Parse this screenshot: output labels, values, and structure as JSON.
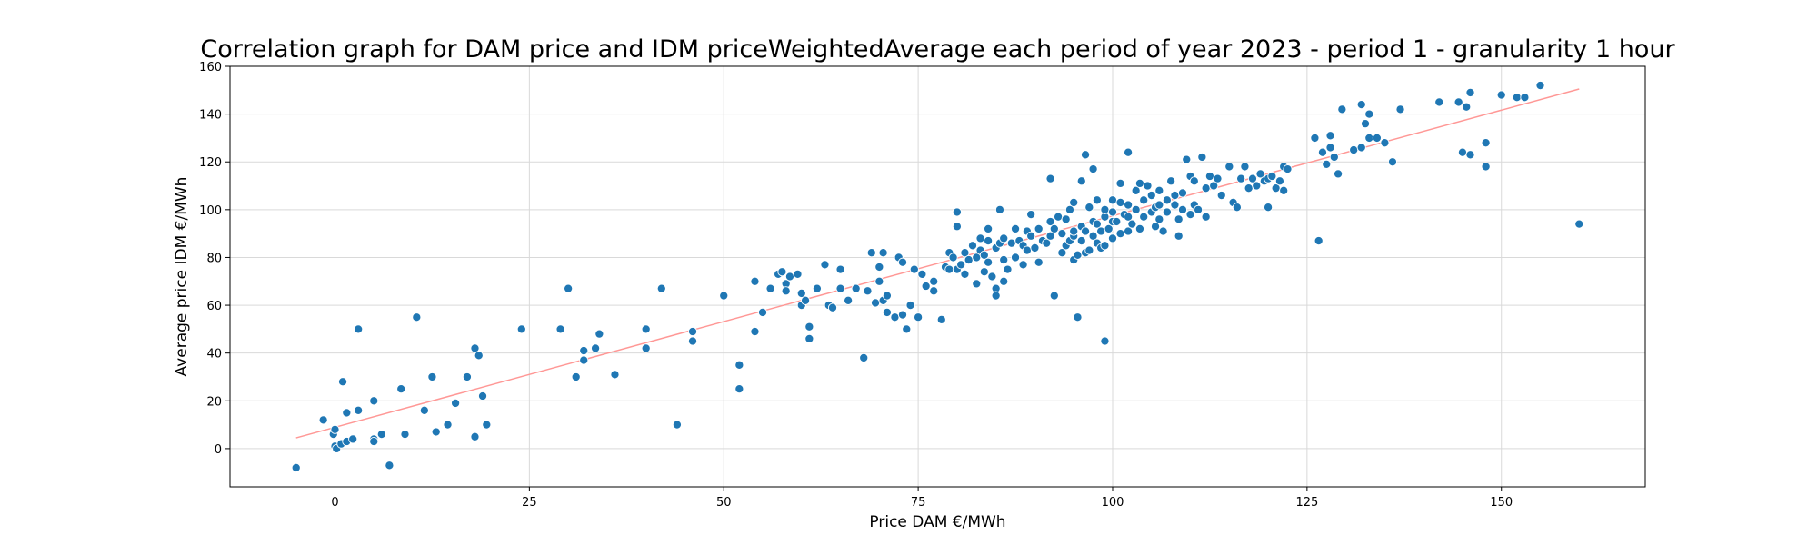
{
  "chart_data": {
    "type": "scatter",
    "title": "Correlation graph for DAM price and IDM priceWeightedAverage each period of year 2023 - period 1 - granularity 1 hour",
    "xlabel": "Price DAM €/MWh",
    "ylabel": "Average price IDM €/MWh",
    "xlim": [
      -13.5,
      168.5
    ],
    "ylim": [
      -16,
      160
    ],
    "xticks": [
      0,
      25,
      50,
      75,
      100,
      125,
      150
    ],
    "yticks": [
      0,
      20,
      40,
      60,
      80,
      100,
      120,
      140,
      160
    ],
    "grid": true,
    "point_color": "#1f77b4",
    "trend_color": "#ff9896",
    "trendline": {
      "x": [
        -5,
        160
      ],
      "y": [
        4.5,
        150.5
      ]
    },
    "points": [
      [
        -5,
        -8
      ],
      [
        -1.5,
        12
      ],
      [
        -0.2,
        6
      ],
      [
        0,
        8
      ],
      [
        0,
        1
      ],
      [
        0.2,
        0
      ],
      [
        0.8,
        2
      ],
      [
        1,
        28
      ],
      [
        1.5,
        15
      ],
      [
        1.5,
        3
      ],
      [
        2.3,
        4
      ],
      [
        3,
        16
      ],
      [
        3,
        50
      ],
      [
        5,
        20
      ],
      [
        5,
        4
      ],
      [
        5,
        3
      ],
      [
        6,
        6
      ],
      [
        7,
        -7
      ],
      [
        8.5,
        25
      ],
      [
        9,
        6
      ],
      [
        10.5,
        55
      ],
      [
        11.5,
        16
      ],
      [
        12.5,
        30
      ],
      [
        13,
        7
      ],
      [
        14.5,
        10
      ],
      [
        15.5,
        19
      ],
      [
        17,
        30
      ],
      [
        18,
        5
      ],
      [
        18,
        42
      ],
      [
        18.5,
        39
      ],
      [
        19,
        22
      ],
      [
        19.5,
        10
      ],
      [
        24,
        50
      ],
      [
        29,
        50
      ],
      [
        30,
        67
      ],
      [
        31,
        30
      ],
      [
        32,
        41
      ],
      [
        32,
        37
      ],
      [
        33.5,
        42
      ],
      [
        34,
        48
      ],
      [
        36,
        31
      ],
      [
        40,
        50
      ],
      [
        40,
        42
      ],
      [
        42,
        67
      ],
      [
        44,
        10
      ],
      [
        46,
        49
      ],
      [
        46,
        45
      ],
      [
        50,
        64
      ],
      [
        52,
        35
      ],
      [
        52,
        25
      ],
      [
        54,
        70
      ],
      [
        54,
        49
      ],
      [
        55,
        57
      ],
      [
        56,
        67
      ],
      [
        57,
        73
      ],
      [
        57.5,
        74
      ],
      [
        58,
        69
      ],
      [
        58,
        66
      ],
      [
        58.5,
        72
      ],
      [
        59.5,
        73
      ],
      [
        60,
        65
      ],
      [
        60,
        60
      ],
      [
        60.5,
        62
      ],
      [
        61,
        51
      ],
      [
        61,
        46
      ],
      [
        62,
        67
      ],
      [
        63,
        77
      ],
      [
        63.5,
        60
      ],
      [
        64,
        59
      ],
      [
        65,
        75
      ],
      [
        65,
        67
      ],
      [
        66,
        62
      ],
      [
        67,
        67
      ],
      [
        68,
        38
      ],
      [
        68.5,
        66
      ],
      [
        69,
        82
      ],
      [
        69.5,
        61
      ],
      [
        70,
        76
      ],
      [
        70,
        70
      ],
      [
        70.5,
        82
      ],
      [
        70.5,
        62
      ],
      [
        71,
        57
      ],
      [
        71,
        64
      ],
      [
        72,
        55
      ],
      [
        72.5,
        80
      ],
      [
        73,
        78
      ],
      [
        73,
        56
      ],
      [
        73.5,
        50
      ],
      [
        74,
        60
      ],
      [
        74.5,
        75
      ],
      [
        75,
        55
      ],
      [
        75.5,
        73
      ],
      [
        76,
        68
      ],
      [
        77,
        70
      ],
      [
        77,
        66
      ],
      [
        78,
        54
      ],
      [
        78.5,
        76
      ],
      [
        79,
        82
      ],
      [
        79,
        75
      ],
      [
        79.5,
        80
      ],
      [
        80,
        99
      ],
      [
        80,
        93
      ],
      [
        80,
        75
      ],
      [
        80.5,
        77
      ],
      [
        81,
        73
      ],
      [
        81,
        82
      ],
      [
        81.5,
        79
      ],
      [
        82,
        85
      ],
      [
        82.5,
        80
      ],
      [
        82.5,
        69
      ],
      [
        83,
        88
      ],
      [
        83,
        83
      ],
      [
        83.5,
        81
      ],
      [
        83.5,
        74
      ],
      [
        84,
        87
      ],
      [
        84,
        92
      ],
      [
        84,
        78
      ],
      [
        84.5,
        72
      ],
      [
        85,
        84
      ],
      [
        85,
        67
      ],
      [
        85,
        64
      ],
      [
        85.5,
        86
      ],
      [
        85.5,
        100
      ],
      [
        86,
        79
      ],
      [
        86,
        88
      ],
      [
        86,
        70
      ],
      [
        86.5,
        75
      ],
      [
        87,
        86
      ],
      [
        87.5,
        80
      ],
      [
        87.5,
        92
      ],
      [
        88,
        87
      ],
      [
        88.5,
        85
      ],
      [
        88.5,
        77
      ],
      [
        89,
        83
      ],
      [
        89,
        91
      ],
      [
        89.5,
        89
      ],
      [
        89.5,
        98
      ],
      [
        90,
        84
      ],
      [
        90.5,
        92
      ],
      [
        90.5,
        78
      ],
      [
        91,
        87
      ],
      [
        91.5,
        86
      ],
      [
        92,
        89
      ],
      [
        92,
        95
      ],
      [
        92,
        113
      ],
      [
        92.5,
        92
      ],
      [
        92.5,
        64
      ],
      [
        93,
        97
      ],
      [
        93.5,
        90
      ],
      [
        93.5,
        82
      ],
      [
        94,
        85
      ],
      [
        94,
        96
      ],
      [
        94.5,
        87
      ],
      [
        94.5,
        100
      ],
      [
        95,
        89
      ],
      [
        95,
        91
      ],
      [
        95,
        79
      ],
      [
        95,
        91
      ],
      [
        95,
        103
      ],
      [
        95.5,
        81
      ],
      [
        95.5,
        55
      ],
      [
        96,
        93
      ],
      [
        96,
        87
      ],
      [
        96,
        112
      ],
      [
        96.5,
        123
      ],
      [
        96.5,
        91
      ],
      [
        96.5,
        82
      ],
      [
        97,
        83
      ],
      [
        97,
        101
      ],
      [
        97.5,
        89
      ],
      [
        97.5,
        95
      ],
      [
        97.5,
        117
      ],
      [
        98,
        86
      ],
      [
        98,
        94
      ],
      [
        98,
        104
      ],
      [
        98.5,
        91
      ],
      [
        98.5,
        84
      ],
      [
        99,
        97
      ],
      [
        99,
        100
      ],
      [
        99,
        85
      ],
      [
        99,
        45
      ],
      [
        99.5,
        92
      ],
      [
        100,
        104
      ],
      [
        100,
        88
      ],
      [
        100,
        95
      ],
      [
        100,
        99
      ],
      [
        100.5,
        95
      ],
      [
        101,
        111
      ],
      [
        101,
        103
      ],
      [
        101,
        90
      ],
      [
        101.5,
        98
      ],
      [
        102,
        102
      ],
      [
        102,
        91
      ],
      [
        102,
        97
      ],
      [
        102,
        124
      ],
      [
        102.5,
        94
      ],
      [
        103,
        100
      ],
      [
        103,
        108
      ],
      [
        103.5,
        92
      ],
      [
        103.5,
        111
      ],
      [
        104,
        97
      ],
      [
        104,
        104
      ],
      [
        104.5,
        110
      ],
      [
        105,
        106
      ],
      [
        105,
        99
      ],
      [
        105.5,
        101
      ],
      [
        105.5,
        93
      ],
      [
        106,
        102
      ],
      [
        106,
        108
      ],
      [
        106,
        96
      ],
      [
        106.5,
        91
      ],
      [
        107,
        104
      ],
      [
        107,
        99
      ],
      [
        107.5,
        112
      ],
      [
        108,
        102
      ],
      [
        108,
        106
      ],
      [
        108.5,
        89
      ],
      [
        108.5,
        96
      ],
      [
        109,
        100
      ],
      [
        109,
        107
      ],
      [
        109.5,
        121
      ],
      [
        110,
        114
      ],
      [
        110,
        98
      ],
      [
        110.5,
        112
      ],
      [
        110.5,
        102
      ],
      [
        111,
        100
      ],
      [
        111.5,
        122
      ],
      [
        112,
        109
      ],
      [
        112,
        97
      ],
      [
        112.5,
        114
      ],
      [
        113,
        110
      ],
      [
        113.5,
        113
      ],
      [
        114,
        106
      ],
      [
        115,
        118
      ],
      [
        115.5,
        103
      ],
      [
        116,
        101
      ],
      [
        116.5,
        113
      ],
      [
        117,
        118
      ],
      [
        117.5,
        109
      ],
      [
        118,
        113
      ],
      [
        118.5,
        110
      ],
      [
        119,
        115
      ],
      [
        119.5,
        112
      ],
      [
        120,
        113
      ],
      [
        120,
        101
      ],
      [
        120.5,
        114
      ],
      [
        121,
        109
      ],
      [
        121.5,
        112
      ],
      [
        122,
        118
      ],
      [
        122,
        108
      ],
      [
        122.5,
        117
      ],
      [
        126,
        130
      ],
      [
        126.5,
        87
      ],
      [
        127,
        124
      ],
      [
        127.5,
        119
      ],
      [
        128,
        126
      ],
      [
        128,
        131
      ],
      [
        128.5,
        122
      ],
      [
        129,
        115
      ],
      [
        129.5,
        142
      ],
      [
        131,
        125
      ],
      [
        132,
        144
      ],
      [
        132,
        126
      ],
      [
        132.5,
        136
      ],
      [
        133,
        140
      ],
      [
        133,
        130
      ],
      [
        134,
        130
      ],
      [
        135,
        128
      ],
      [
        136,
        120
      ],
      [
        137,
        142
      ],
      [
        142,
        145
      ],
      [
        144.5,
        145
      ],
      [
        145,
        124
      ],
      [
        145.5,
        143
      ],
      [
        146,
        123
      ],
      [
        146,
        149
      ],
      [
        148,
        118
      ],
      [
        148,
        128
      ],
      [
        150,
        148
      ],
      [
        152,
        147
      ],
      [
        153,
        147
      ],
      [
        155,
        152
      ],
      [
        160,
        94
      ]
    ]
  }
}
